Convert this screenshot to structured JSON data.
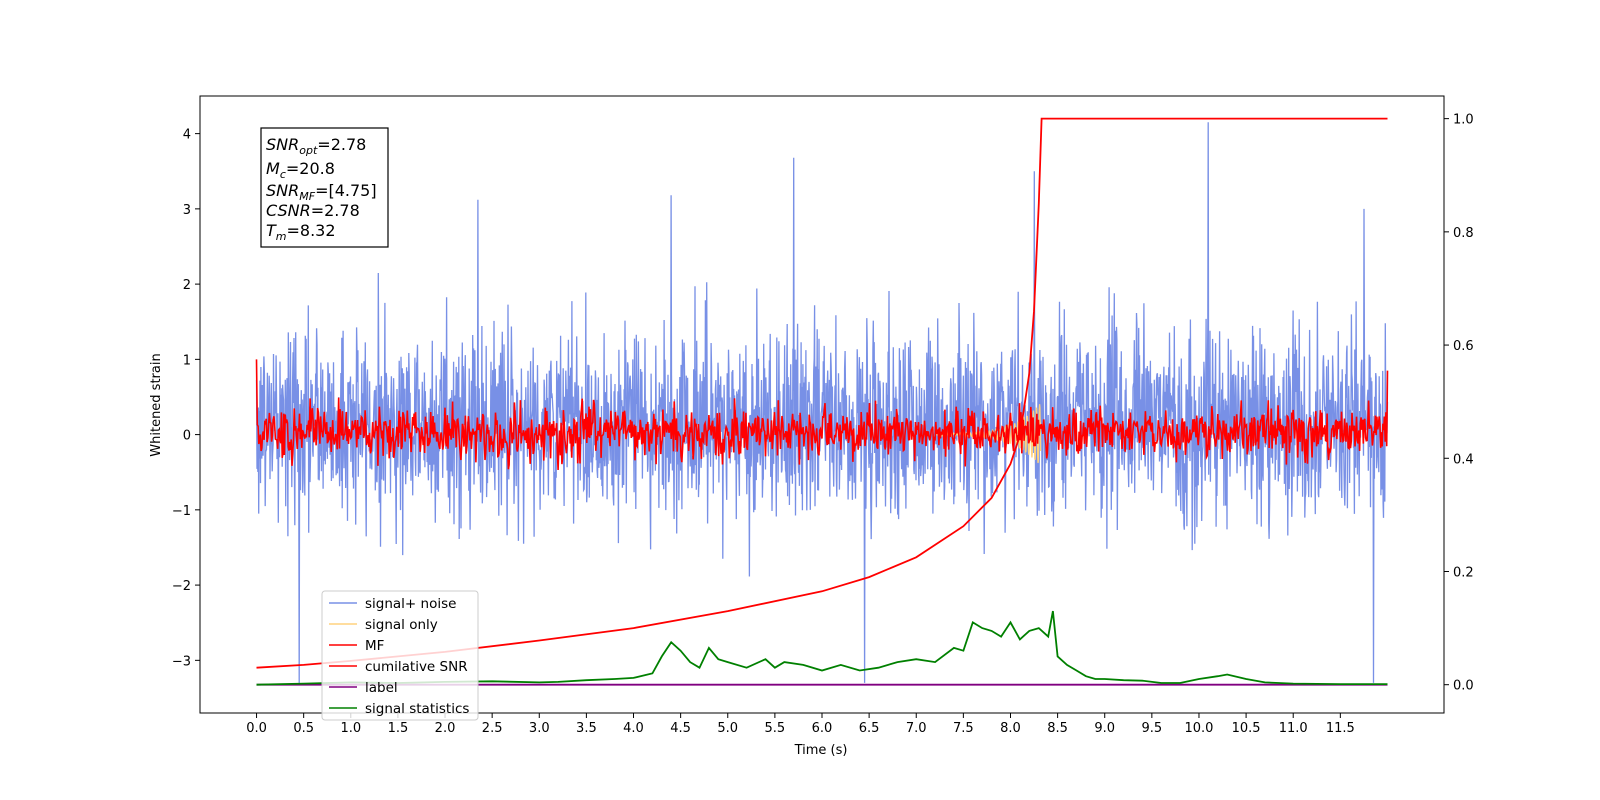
{
  "chart_data": {
    "type": "line",
    "xlabel": "Time (s)",
    "ylabel": "Whitened strain",
    "xlim": [
      -0.6,
      12.6
    ],
    "ylim": [
      -3.7,
      4.5
    ],
    "y2lim": [
      -0.05,
      1.04
    ],
    "x_ticks": [
      "0.0",
      "0.5",
      "1.0",
      "1.5",
      "2.0",
      "2.5",
      "3.0",
      "3.5",
      "4.0",
      "4.5",
      "5.0",
      "5.5",
      "6.0",
      "6.5",
      "7.0",
      "7.5",
      "8.0",
      "8.5",
      "9.0",
      "9.5",
      "10.0",
      "10.5",
      "11.0",
      "11.5"
    ],
    "y_ticks": [
      "4",
      "3",
      "2",
      "1",
      "0",
      "−1",
      "−2",
      "−3"
    ],
    "y2_ticks": [
      "1.0",
      "0.8",
      "0.6",
      "0.4",
      "0.2",
      "0.0"
    ],
    "annotation": {
      "snr_opt_base": "SNR",
      "snr_opt_sub": "opt",
      "snr_opt_val": "=2.78",
      "mc_base": "M",
      "mc_sub": "c",
      "mc_val": "=20.8",
      "snr_mf_base": "SNR",
      "snr_mf_sub": "MF",
      "snr_mf_val": "=[4.75]",
      "csnr_base": "CSNR",
      "csnr_val": "=2.78",
      "tm_base": "T",
      "tm_sub": "m",
      "tm_val": "=8.32"
    },
    "legend": {
      "position": "lower-left",
      "entries": [
        "signal+ noise",
        "signal only",
        "MF",
        "cumilative SNR",
        "label",
        "signal statistics"
      ]
    },
    "colors": {
      "signal_noise": "#7890e6",
      "signal_only": "#ffd27f",
      "mf": "#ff0000",
      "cumulative_snr": "#ff0000",
      "label": "#800080",
      "signal_statistics": "#008000"
    },
    "series": [
      {
        "name": "signal+ noise",
        "axis": "left",
        "description_stats": {
          "x_range": [
            0.0,
            12.0
          ],
          "typical_range": [
            -1.0,
            1.3
          ],
          "extremes": [
            {
              "x": 0.45,
              "y": -3.3
            },
            {
              "x": 2.35,
              "y": 3.12
            },
            {
              "x": 4.4,
              "y": 3.18
            },
            {
              "x": 5.7,
              "y": 3.68
            },
            {
              "x": 6.45,
              "y": -3.3
            },
            {
              "x": 8.25,
              "y": 3.5
            },
            {
              "x": 10.1,
              "y": 4.15
            },
            {
              "x": 11.85,
              "y": -3.3
            },
            {
              "x": 11.75,
              "y": 3.0
            }
          ]
        }
      },
      {
        "name": "signal only",
        "axis": "left",
        "values_note": "near zero",
        "chirp_end_x": 8.32
      },
      {
        "name": "MF",
        "axis": "left",
        "typical_range": [
          -0.4,
          0.55
        ],
        "start": {
          "x": 0.0,
          "y": 1.0
        },
        "end": {
          "x": 12.0,
          "y": 0.85
        }
      },
      {
        "name": "cumilative SNR",
        "axis": "right",
        "x": [
          0.0,
          0.5,
          1.0,
          2.0,
          3.0,
          4.0,
          5.0,
          6.0,
          6.5,
          7.0,
          7.5,
          7.8,
          8.0,
          8.1,
          8.2,
          8.25,
          8.3,
          8.33,
          12.0
        ],
        "y": [
          0.03,
          0.035,
          0.042,
          0.058,
          0.078,
          0.1,
          0.13,
          0.165,
          0.19,
          0.225,
          0.28,
          0.33,
          0.39,
          0.44,
          0.55,
          0.66,
          0.85,
          1.0,
          1.0
        ]
      },
      {
        "name": "label",
        "axis": "right",
        "x": [
          0.0,
          12.0
        ],
        "y": [
          0.0,
          0.0
        ]
      },
      {
        "name": "signal statistics",
        "axis": "right",
        "x": [
          0.0,
          0.5,
          1.0,
          1.5,
          2.0,
          2.5,
          3.0,
          3.2,
          3.5,
          3.8,
          4.0,
          4.2,
          4.3,
          4.4,
          4.5,
          4.6,
          4.7,
          4.8,
          4.9,
          5.0,
          5.2,
          5.4,
          5.5,
          5.6,
          5.8,
          6.0,
          6.2,
          6.4,
          6.6,
          6.8,
          7.0,
          7.2,
          7.4,
          7.5,
          7.6,
          7.7,
          7.8,
          7.9,
          8.0,
          8.1,
          8.2,
          8.3,
          8.4,
          8.45,
          8.5,
          8.6,
          8.7,
          8.8,
          8.9,
          9.0,
          9.2,
          9.4,
          9.6,
          9.8,
          10.0,
          10.2,
          10.3,
          10.5,
          10.7,
          11.0,
          11.5,
          12.0
        ],
        "y": [
          0.0,
          0.002,
          0.004,
          0.003,
          0.005,
          0.006,
          0.004,
          0.005,
          0.008,
          0.01,
          0.012,
          0.02,
          0.05,
          0.075,
          0.06,
          0.04,
          0.03,
          0.065,
          0.045,
          0.04,
          0.03,
          0.045,
          0.03,
          0.04,
          0.035,
          0.025,
          0.035,
          0.025,
          0.03,
          0.04,
          0.045,
          0.04,
          0.065,
          0.06,
          0.11,
          0.1,
          0.095,
          0.085,
          0.11,
          0.08,
          0.095,
          0.1,
          0.085,
          0.13,
          0.05,
          0.035,
          0.025,
          0.015,
          0.01,
          0.01,
          0.008,
          0.007,
          0.003,
          0.003,
          0.01,
          0.015,
          0.018,
          0.01,
          0.004,
          0.002,
          0.001,
          0.001
        ]
      }
    ]
  }
}
